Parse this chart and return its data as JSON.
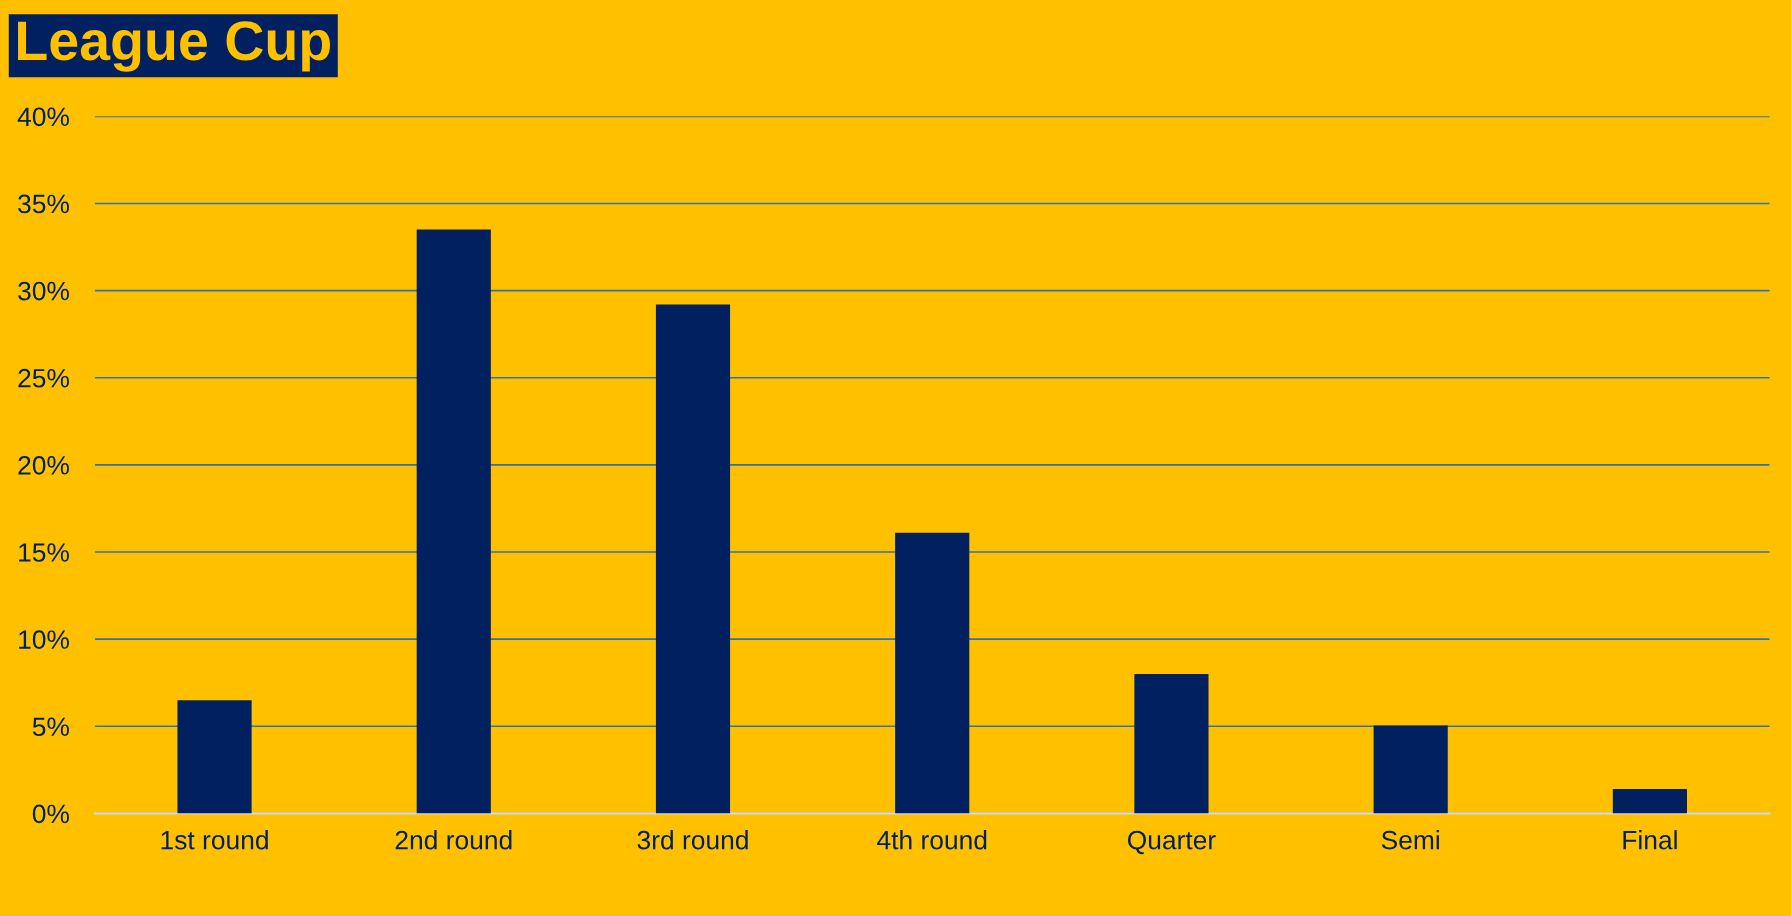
{
  "chart_data": {
    "type": "bar",
    "title": "League Cup",
    "categories": [
      "1st round",
      "2nd round",
      "3rd round",
      "4th round",
      "Quarter",
      "Semi",
      "Final"
    ],
    "values": [
      6.5,
      33.5,
      29.2,
      16.1,
      8.0,
      5.05,
      1.4
    ],
    "color": "#002060",
    "ylim": [
      0,
      40
    ],
    "yticks": [
      {
        "value": 0,
        "label": "0%"
      },
      {
        "value": 5,
        "label": "5%"
      },
      {
        "value": 10,
        "label": "10%"
      },
      {
        "value": 15,
        "label": "15%"
      },
      {
        "value": 20,
        "label": "20%"
      },
      {
        "value": 25,
        "label": "25%"
      },
      {
        "value": 30,
        "label": "30%"
      },
      {
        "value": 35,
        "label": "35%"
      },
      {
        "value": 40,
        "label": "40%"
      }
    ],
    "grid": "y"
  }
}
